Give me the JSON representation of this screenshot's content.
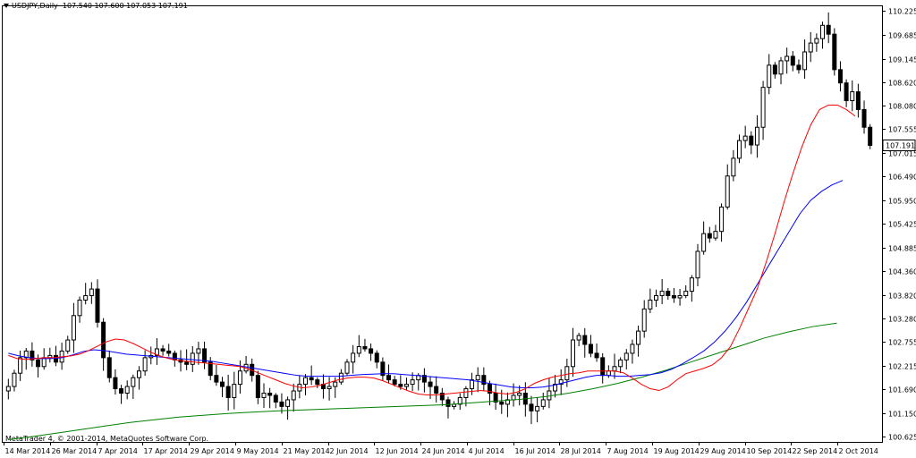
{
  "header": {
    "symbol": "USDJPY,Daily",
    "ohlc": "107.540 107.600 107.053 107.191"
  },
  "footer": {
    "copyright": "MetaTrader 4, © 2001-2014, MetaQuotes Software Corp."
  },
  "chart_data": {
    "type": "candlestick",
    "grid": false,
    "ylim": [
      100.5,
      110.35
    ],
    "y_ticks": [
      "110.225",
      "109.685",
      "109.145",
      "108.620",
      "108.080",
      "107.555",
      "107.015",
      "106.490",
      "105.950",
      "105.425",
      "104.885",
      "104.360",
      "103.820",
      "103.280",
      "102.755",
      "102.215",
      "101.690",
      "101.150",
      "100.625"
    ],
    "x_ticks": [
      "14 Mar 2014",
      "26 Mar 2014",
      "7 Apr 2014",
      "17 Apr 2014",
      "29 Apr 2014",
      "9 May 2014",
      "21 May 2014",
      "2 Jun 2014",
      "12 Jun 2014",
      "24 Jun 2014",
      "4 Jul 2014",
      "16 Jul 2014",
      "28 Jul 2014",
      "7 Aug 2014",
      "19 Aug 2014",
      "29 Aug 2014",
      "10 Sep 2014",
      "22 Sep 2014",
      "2 Oct 2014"
    ],
    "current_price": "107.191",
    "colors": {
      "bull": "#ffffff",
      "bear": "#000000",
      "ma_fast": "#ff0000",
      "ma_mid": "#0000ff",
      "ma_slow": "#008000"
    },
    "close": [
      101.75,
      102.05,
      102.4,
      102.55,
      102.35,
      102.2,
      102.4,
      102.45,
      102.3,
      102.55,
      102.8,
      103.35,
      103.7,
      103.8,
      103.95,
      103.2,
      102.4,
      101.95,
      101.7,
      101.6,
      101.75,
      101.95,
      102.1,
      102.4,
      102.45,
      102.6,
      102.55,
      102.5,
      102.35,
      102.3,
      102.25,
      102.5,
      102.6,
      102.3,
      102.0,
      101.85,
      101.75,
      101.5,
      101.8,
      102.1,
      102.25,
      102.0,
      101.5,
      101.6,
      101.55,
      101.4,
      101.3,
      101.45,
      101.65,
      101.8,
      101.95,
      101.9,
      101.8,
      101.7,
      101.75,
      101.85,
      102.05,
      102.3,
      102.5,
      102.65,
      102.6,
      102.5,
      102.3,
      102.0,
      101.9,
      101.8,
      101.75,
      101.8,
      101.9,
      102.0,
      101.85,
      101.75,
      101.6,
      101.45,
      101.3,
      101.35,
      101.5,
      101.7,
      101.9,
      102.0,
      101.8,
      101.6,
      101.4,
      101.35,
      101.45,
      101.55,
      101.6,
      101.35,
      101.2,
      101.3,
      101.45,
      101.65,
      101.8,
      101.9,
      102.2,
      102.8,
      102.9,
      102.7,
      102.5,
      102.4,
      102.0,
      102.1,
      102.2,
      102.35,
      102.5,
      102.7,
      103.0,
      103.5,
      103.7,
      103.8,
      103.9,
      103.8,
      103.75,
      103.8,
      103.9,
      104.2,
      104.8,
      105.2,
      105.1,
      105.25,
      105.8,
      106.5,
      106.9,
      107.3,
      107.4,
      107.2,
      107.6,
      108.5,
      109.0,
      108.8,
      109.1,
      109.2,
      109.0,
      108.9,
      109.3,
      109.5,
      109.6,
      109.9,
      109.7,
      108.9,
      108.6,
      108.2,
      108.4,
      108.0,
      107.6,
      107.19
    ],
    "ma_fast": [
      102.45,
      102.38,
      102.36,
      102.38,
      102.4,
      102.4,
      102.42,
      102.44,
      102.48,
      102.56,
      102.66,
      102.76,
      102.82,
      102.8,
      102.72,
      102.62,
      102.52,
      102.44,
      102.38,
      102.34,
      102.32,
      102.3,
      102.28,
      102.26,
      102.24,
      102.22,
      102.2,
      102.14,
      102.06,
      101.98,
      101.9,
      101.82,
      101.76,
      101.72,
      101.74,
      101.78,
      101.84,
      101.9,
      101.94,
      101.96,
      101.96,
      101.94,
      101.88,
      101.8,
      101.72,
      101.64,
      101.58,
      101.56,
      101.56,
      101.58,
      101.6,
      101.62,
      101.64,
      101.66,
      101.64,
      101.6,
      101.58,
      101.62,
      101.7,
      101.82,
      101.9,
      101.96,
      102.0,
      102.04,
      102.06,
      102.1,
      102.1,
      102.1,
      102.1,
      102.06,
      101.94,
      101.8,
      101.7,
      101.66,
      101.74,
      101.9,
      102.04,
      102.1,
      102.16,
      102.24,
      102.4,
      102.65,
      103.05,
      103.5,
      103.95,
      104.55,
      105.2,
      105.9,
      106.55,
      107.15,
      107.65,
      108.0,
      108.1,
      108.1,
      108.0,
      107.85
    ],
    "ma_fast_index_start": 0,
    "ma_fast_step": 1.5,
    "ma_mid": [
      102.5,
      102.44,
      102.4,
      102.38,
      102.38,
      102.4,
      102.46,
      102.54,
      102.58,
      102.56,
      102.52,
      102.48,
      102.46,
      102.44,
      102.42,
      102.4,
      102.38,
      102.36,
      102.34,
      102.32,
      102.28,
      102.24,
      102.2,
      102.16,
      102.12,
      102.08,
      102.04,
      102.0,
      101.98,
      101.98,
      101.98,
      101.98,
      102.0,
      102.02,
      102.03,
      102.04,
      102.04,
      102.02,
      102.0,
      101.98,
      101.96,
      101.94,
      101.92,
      101.9,
      101.86,
      101.82,
      101.78,
      101.74,
      101.72,
      101.72,
      101.74,
      101.78,
      101.84,
      101.9,
      101.96,
      102.0,
      102.0,
      101.98,
      101.98,
      102.0,
      102.02,
      102.06,
      102.14,
      102.26,
      102.4,
      102.55,
      102.75,
      103.0,
      103.3,
      103.65,
      104.05,
      104.45,
      104.85,
      105.25,
      105.65,
      105.95,
      106.15,
      106.3,
      106.4
    ],
    "ma_mid_step": 1.8,
    "ma_slow": [
      100.55,
      100.62,
      100.7,
      100.78,
      100.86,
      100.94,
      101.0,
      101.06,
      101.1,
      101.14,
      101.17,
      101.2,
      101.22,
      101.24,
      101.26,
      101.28,
      101.3,
      101.32,
      101.34,
      101.38,
      101.42,
      101.46,
      101.52,
      101.6,
      101.7,
      101.82,
      101.96,
      102.12,
      102.3,
      102.48,
      102.66,
      102.84,
      102.98,
      103.1,
      103.18
    ],
    "ma_slow_step": 4.1
  }
}
